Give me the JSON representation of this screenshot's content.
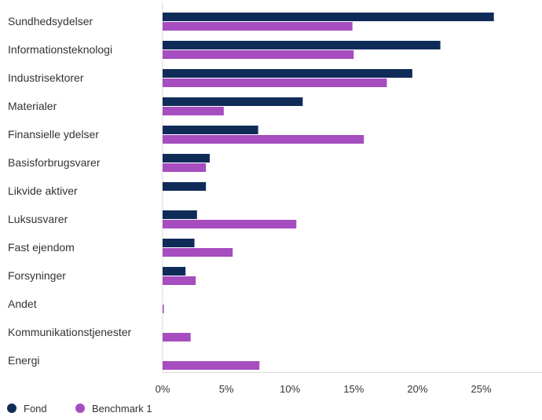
{
  "chart_data": {
    "type": "bar",
    "orientation": "horizontal",
    "categories": [
      "Sundhedsydelser",
      "Informationsteknologi",
      "Industrisektorer",
      "Materialer",
      "Finansielle ydelser",
      "Basisforbrugsvarer",
      "Likvide aktiver",
      "Luksusvarer",
      "Fast ejendom",
      "Forsyninger",
      "Andet",
      "Kommunikationstjenester",
      "Energi"
    ],
    "series": [
      {
        "name": "Fond",
        "color": "#0f2c59",
        "values": [
          26.0,
          21.8,
          19.6,
          11.0,
          7.5,
          3.7,
          3.4,
          2.7,
          2.5,
          1.8,
          0.0,
          0.0,
          0.0
        ]
      },
      {
        "name": "Benchmark 1",
        "color": "#a64dbf",
        "values": [
          14.9,
          15.0,
          17.6,
          4.8,
          15.8,
          3.4,
          0.0,
          10.5,
          5.5,
          2.6,
          0.1,
          2.2,
          7.6
        ]
      }
    ],
    "xlim": [
      0,
      30
    ],
    "xticks": [
      0,
      5,
      10,
      15,
      20,
      25
    ],
    "xtick_labels": [
      "0%",
      "5%",
      "10%",
      "15%",
      "20%",
      "25%"
    ],
    "grid": false,
    "legend_position": "bottom-left"
  }
}
